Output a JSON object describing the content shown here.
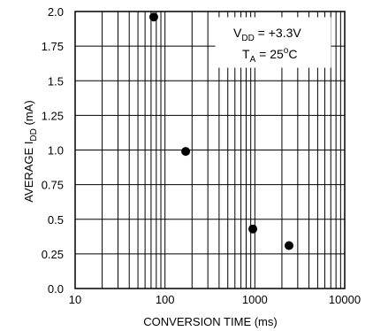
{
  "chart_data": {
    "type": "scatter",
    "xlabel": "CONVERSION TIME (ms)",
    "ylabel": {
      "main": "AVERAGE I",
      "sub": "DD",
      "unit": " (mA)"
    },
    "xscale": "log",
    "xlim": [
      10,
      10000
    ],
    "ylim": [
      0,
      2.0
    ],
    "grid": true,
    "x_tick_labels": [
      "10",
      "100",
      "1000",
      "10000"
    ],
    "y_tick_labels": [
      "0.0",
      "0.25",
      "0.5",
      "0.75",
      "1.0",
      "1.25",
      "1.5",
      "1.75",
      "2.0"
    ],
    "x_ticks": [
      10,
      100,
      1000,
      10000
    ],
    "y_ticks": [
      0,
      0.25,
      0.5,
      0.75,
      1.0,
      1.25,
      1.5,
      1.75,
      2.0
    ],
    "points": [
      {
        "x": 75,
        "y": 1.96
      },
      {
        "x": 170,
        "y": 0.99
      },
      {
        "x": 950,
        "y": 0.43
      },
      {
        "x": 2400,
        "y": 0.31
      }
    ],
    "annotations": {
      "line1": {
        "main": "V",
        "sub": "DD",
        "rest": " = +3.3V"
      },
      "line2": {
        "main": "T",
        "sub": "A",
        "rest": " = 25",
        "sup": "o",
        "end": "C"
      }
    }
  }
}
